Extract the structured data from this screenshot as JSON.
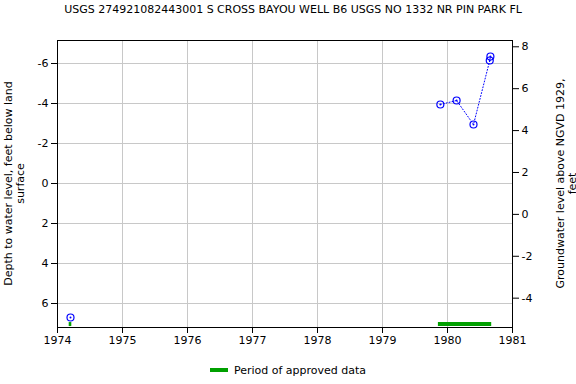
{
  "chart_data": {
    "type": "scatter",
    "title": "USGS 274921082443001 S CROSS BAYOU WELL B6 USGS NO 1332 NR PIN PARK FL",
    "x_label": "",
    "y_label": "Depth to water level, feet below land surface",
    "y2_label": "Groundwater level above NGVD 1929, feet",
    "series": [
      {
        "x": [
          1974.2
        ],
        "values": [
          6.7
        ],
        "color": "#0000ff",
        "marker": "circle"
      },
      {
        "x": [
          1979.89,
          1980.14,
          1980.4,
          1980.65,
          1980.66
        ],
        "values": [
          -3.95,
          -4.15,
          -2.95,
          -6.15,
          -6.35
        ],
        "color": "#0000ff",
        "marker": "circle",
        "line_style": "dotted"
      }
    ],
    "approved_periods": {
      "label": "Period of approved data",
      "color": "#00a000",
      "ranges": [
        [
          1974.18,
          1974.22
        ],
        [
          1979.86,
          1980.68
        ]
      ]
    },
    "xlim": [
      1974,
      1981
    ],
    "xticks": [
      1974,
      1975,
      1976,
      1977,
      1978,
      1979,
      1980,
      1981
    ],
    "ylim": [
      7.2,
      -7.15
    ],
    "yticks": [
      -6,
      -4,
      -2,
      0,
      2,
      4,
      6
    ],
    "y2lim": [
      -5.4,
      8.3
    ],
    "y2ticks": [
      -4,
      -2,
      0,
      2,
      4,
      6,
      8
    ],
    "grid": true,
    "legend": "bottom"
  }
}
